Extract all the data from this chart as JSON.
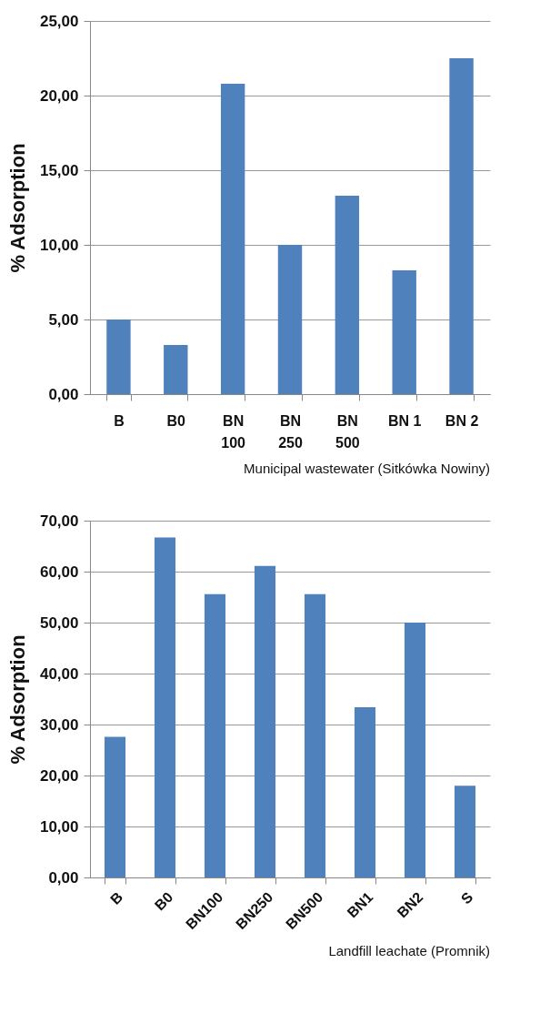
{
  "chart_data": [
    {
      "type": "bar",
      "categories": [
        "B",
        "B0",
        "BN 100",
        "BN 250",
        "BN 500",
        "BN 1",
        "BN 2"
      ],
      "values": [
        5.0,
        3.3,
        20.8,
        10.0,
        13.3,
        8.3,
        22.5
      ],
      "color": "#4f81bd",
      "ylabel": "% Adsorption",
      "ylim": [
        0,
        25
      ],
      "yticks": [
        {
          "value": 0,
          "label": "0,00"
        },
        {
          "value": 5,
          "label": "5,00"
        },
        {
          "value": 10,
          "label": "10,00"
        },
        {
          "value": 15,
          "label": "15,00"
        },
        {
          "value": 20,
          "label": "20,00"
        },
        {
          "value": 25,
          "label": "25,00"
        }
      ],
      "grid": "y",
      "annotations": [
        "Municipal wastewater (Sitkówka Nowiny)"
      ]
    },
    {
      "type": "bar",
      "categories": [
        "B",
        "B0",
        "BN100",
        "BN250",
        "BN500",
        "BN1",
        "BN2",
        "S"
      ],
      "values": [
        27.6,
        66.7,
        55.6,
        61.1,
        55.6,
        33.4,
        50.0,
        18.0
      ],
      "color": "#4f81bd",
      "ylabel": "% Adsorption",
      "ylim": [
        0,
        70
      ],
      "yticks": [
        {
          "value": 0,
          "label": "0,00"
        },
        {
          "value": 10,
          "label": "10,00"
        },
        {
          "value": 20,
          "label": "20,00"
        },
        {
          "value": 30,
          "label": "30,00"
        },
        {
          "value": 40,
          "label": "40,00"
        },
        {
          "value": 50,
          "label": "50,00"
        },
        {
          "value": 60,
          "label": "60,00"
        },
        {
          "value": 70,
          "label": "70,00"
        }
      ],
      "grid": "y",
      "annotations": [
        "Landfill leachate (Promnik)"
      ]
    }
  ]
}
